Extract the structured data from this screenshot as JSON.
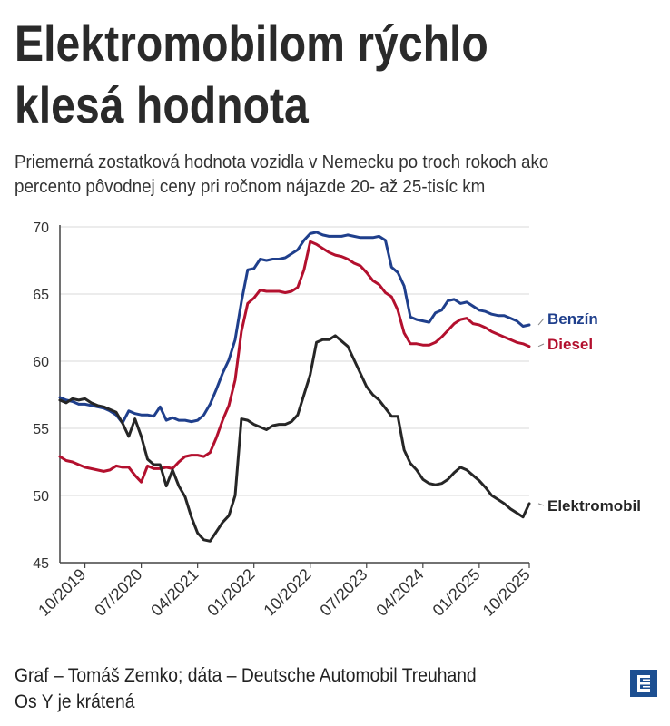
{
  "title": {
    "line1": "Elektromobilom rýchlo",
    "line2": "klesá hodnota"
  },
  "subtitle": {
    "line1": "Priemerná zostatková hodnota vozidla v Nemecku po troch rokoch ako",
    "line2": "percento pôvodnej ceny pri ročnom nájazde 20- až 25-tisíc km"
  },
  "footer": {
    "source": "Graf – Tomáš Zemko; dáta – Deutsche Automobil Treuhand",
    "note": "Os Y je krátená"
  },
  "colors": {
    "benzin": "#1f3f8c",
    "diesel": "#b3102e",
    "elektromobil": "#262626",
    "grid": "#d9d9d9",
    "axis": "#444444"
  },
  "logo_icon": "brand-logo-icon",
  "chart_data": {
    "type": "line",
    "title": "Elektromobilom rýchlo klesá hodnota",
    "xlabel": "",
    "ylabel": "",
    "ylim": [
      45,
      70
    ],
    "yticks": [
      45,
      50,
      55,
      60,
      65,
      70
    ],
    "xlim": [
      0,
      75
    ],
    "xtick_labels": [
      "10/2019",
      "07/2020",
      "04/2021",
      "01/2022",
      "10/2022",
      "07/2023",
      "04/2024",
      "01/2025",
      "10/2025"
    ],
    "xtick_positions": [
      4,
      13,
      22,
      31,
      40,
      49,
      58,
      67,
      75
    ],
    "grid": "horizontal",
    "series": [
      {
        "name": "Benzín",
        "color": "#1f3f8c",
        "values": [
          57.3,
          57.1,
          57.0,
          56.8,
          56.8,
          56.7,
          56.6,
          56.5,
          56.3,
          56.0,
          55.4,
          56.3,
          56.1,
          56.0,
          56.0,
          55.9,
          56.6,
          55.6,
          55.8,
          55.6,
          55.6,
          55.5,
          55.6,
          56.0,
          56.8,
          57.9,
          59.1,
          60.1,
          61.6,
          64.4,
          66.8,
          66.9,
          67.6,
          67.5,
          67.6,
          67.6,
          67.7,
          68.0,
          68.3,
          69.0,
          69.5,
          69.6,
          69.4,
          69.3,
          69.3,
          69.3,
          69.4,
          69.3,
          69.2,
          69.2,
          69.2,
          69.3,
          69.0,
          67.0,
          66.6,
          65.6,
          63.3,
          63.1,
          63.0,
          62.9,
          63.6,
          63.8,
          64.5,
          64.6,
          64.3,
          64.4,
          64.1,
          63.8,
          63.7,
          63.5,
          63.4,
          63.4,
          63.2,
          63.0,
          62.6,
          62.7
        ]
      },
      {
        "name": "Diesel",
        "color": "#b3102e",
        "values": [
          52.9,
          52.6,
          52.5,
          52.3,
          52.1,
          52.0,
          51.9,
          51.8,
          51.9,
          52.2,
          52.1,
          52.1,
          51.5,
          51.0,
          52.2,
          52.0,
          52.0,
          52.1,
          52.0,
          52.5,
          52.9,
          53.0,
          53.0,
          52.9,
          53.2,
          54.3,
          55.6,
          56.7,
          58.6,
          62.2,
          64.3,
          64.7,
          65.3,
          65.2,
          65.2,
          65.2,
          65.1,
          65.2,
          65.5,
          66.8,
          68.9,
          68.7,
          68.4,
          68.1,
          67.9,
          67.8,
          67.6,
          67.3,
          67.1,
          66.6,
          66.0,
          65.7,
          65.1,
          64.8,
          63.8,
          62.1,
          61.3,
          61.3,
          61.2,
          61.2,
          61.4,
          61.8,
          62.3,
          62.8,
          63.1,
          63.2,
          62.8,
          62.7,
          62.5,
          62.2,
          62.0,
          61.8,
          61.6,
          61.4,
          61.3,
          61.1
        ]
      },
      {
        "name": "Elektromobil",
        "color": "#262626",
        "values": [
          57.1,
          56.9,
          57.2,
          57.1,
          57.2,
          56.9,
          56.7,
          56.6,
          56.4,
          56.2,
          55.4,
          54.4,
          55.7,
          54.4,
          52.7,
          52.3,
          52.3,
          50.7,
          51.9,
          50.7,
          49.9,
          48.4,
          47.2,
          46.7,
          46.6,
          47.3,
          48.0,
          48.5,
          50.0,
          55.7,
          55.6,
          55.3,
          55.1,
          54.9,
          55.2,
          55.3,
          55.3,
          55.5,
          56.0,
          57.5,
          59.0,
          61.4,
          61.6,
          61.6,
          61.9,
          61.5,
          61.1,
          60.1,
          59.1,
          58.1,
          57.5,
          57.1,
          56.5,
          55.9,
          55.9,
          53.4,
          52.4,
          51.9,
          51.2,
          50.9,
          50.8,
          50.9,
          51.2,
          51.7,
          52.1,
          51.9,
          51.5,
          51.1,
          50.6,
          50.0,
          49.7,
          49.4,
          49.0,
          48.7,
          48.4,
          49.4
        ]
      }
    ]
  }
}
